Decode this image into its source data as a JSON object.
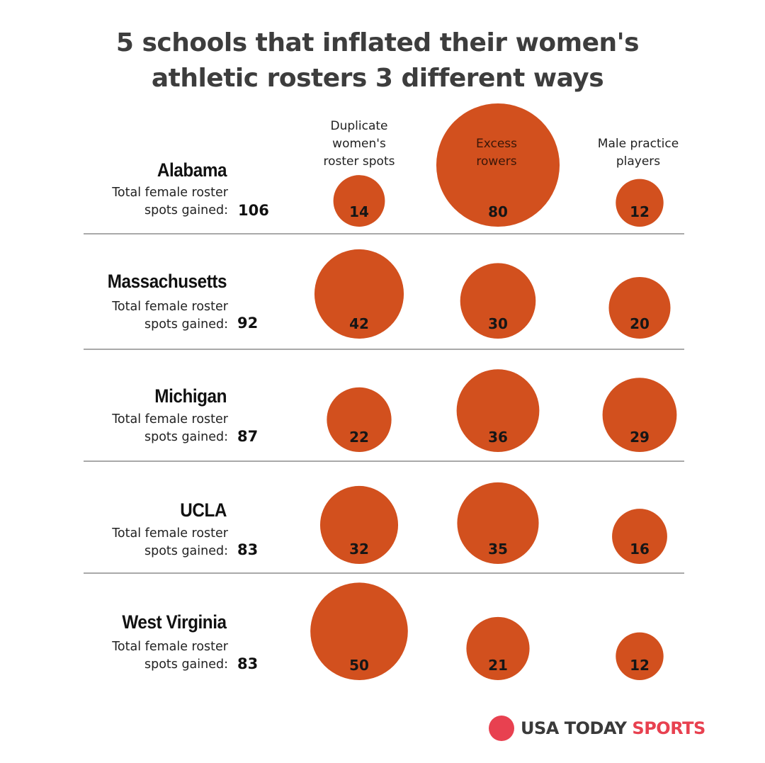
{
  "title": {
    "line1": "5 schools that inflated their women's",
    "line2": "athletic rosters 3 different ways"
  },
  "colors": {
    "bubble": "#d2501e",
    "title": "#3d3d3d",
    "divider": "#a9a9a9",
    "logo_accent": "#e84150"
  },
  "columns": [
    {
      "label_lines": [
        "Duplicate",
        "women's",
        "roster spots"
      ]
    },
    {
      "label_lines": [
        "Excess",
        "rowers"
      ]
    },
    {
      "label_lines": [
        "Male practice",
        "players"
      ]
    }
  ],
  "subtitle_lines": [
    "Total female roster",
    "spots gained:"
  ],
  "schools": [
    {
      "name": "Alabama",
      "total": "106"
    },
    {
      "name": "Massachusetts",
      "total": "92"
    },
    {
      "name": "Michigan",
      "total": "87"
    },
    {
      "name": "UCLA",
      "total": "83"
    },
    {
      "name": "West Virginia",
      "total": "83"
    }
  ],
  "logo": {
    "main": "USA TODAY",
    "accent": "SPORTS"
  },
  "chart_data": {
    "type": "bubble",
    "title": "5 schools that inflated their women's athletic rosters 3 different ways",
    "categories": [
      "Alabama",
      "Massachusetts",
      "Michigan",
      "UCLA",
      "West Virginia"
    ],
    "series": [
      {
        "name": "Duplicate women's roster spots",
        "values": [
          14,
          42,
          22,
          32,
          50
        ]
      },
      {
        "name": "Excess rowers",
        "values": [
          80,
          30,
          36,
          35,
          21
        ]
      },
      {
        "name": "Male practice players",
        "values": [
          12,
          20,
          29,
          16,
          12
        ]
      }
    ],
    "totals": [
      106,
      92,
      87,
      83,
      83
    ],
    "size_encoding": "area"
  }
}
